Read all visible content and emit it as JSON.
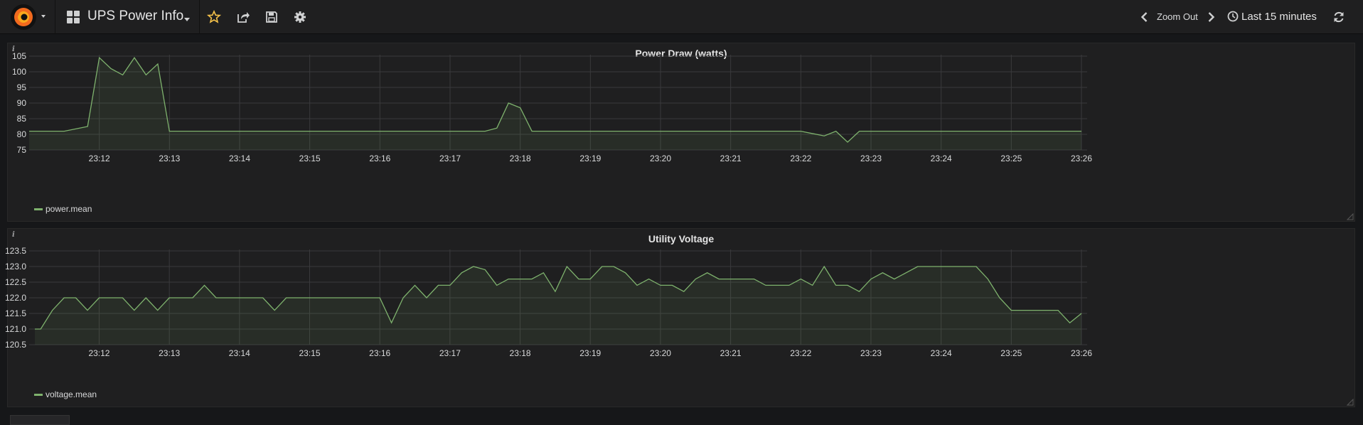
{
  "navbar": {
    "dashboard_title": "UPS Power Info",
    "zoom_label": "Zoom Out",
    "time_range": "Last 15 minutes",
    "icons": [
      "grafana-logo-icon",
      "dashboard-grid-icon",
      "star-icon",
      "share-icon",
      "save-icon",
      "settings-gear-icon",
      "chevron-left-icon",
      "chevron-right-icon",
      "clock-icon",
      "refresh-icon"
    ]
  },
  "colors": {
    "series": "#7eb26d",
    "star": "#f7c34a",
    "background": "#161719",
    "panel": "#1f1f20",
    "grid": "#3a3a3c"
  },
  "chart_data": [
    {
      "type": "area",
      "title": "Power Draw (watts)",
      "ylim": [
        75,
        105
      ],
      "yticks": [
        75,
        80,
        85,
        90,
        95,
        100,
        105
      ],
      "ytick_labels": [
        "75",
        "80",
        "85",
        "90",
        "95",
        "100",
        "105"
      ],
      "xlim": [
        "23:11:00",
        "23:26:00"
      ],
      "xticks": [
        "23:12",
        "23:13",
        "23:14",
        "23:15",
        "23:16",
        "23:17",
        "23:18",
        "23:19",
        "23:20",
        "23:21",
        "23:22",
        "23:23",
        "23:24",
        "23:25",
        "23:26"
      ],
      "grid": true,
      "legend_position": "bottom-left",
      "series": [
        {
          "name": "power.mean",
          "x": [
            "23:11:00",
            "23:11:30",
            "23:11:50",
            "23:12:00",
            "23:12:10",
            "23:12:20",
            "23:12:30",
            "23:12:40",
            "23:12:50",
            "23:13:00",
            "23:14:00",
            "23:15:00",
            "23:16:00",
            "23:17:00",
            "23:17:30",
            "23:17:40",
            "23:17:50",
            "23:18:00",
            "23:18:10",
            "23:19:00",
            "23:20:00",
            "23:21:00",
            "23:22:00",
            "23:22:20",
            "23:22:30",
            "23:22:40",
            "23:22:50",
            "23:23:00",
            "23:24:00",
            "23:25:00",
            "23:26:00"
          ],
          "y": [
            81,
            81,
            82.5,
            104.5,
            101,
            99,
            104.5,
            99,
            102.5,
            81,
            81,
            81,
            81,
            81,
            81,
            82,
            90,
            88.5,
            81,
            81,
            81,
            81,
            81,
            79.5,
            81,
            77.5,
            81,
            81,
            81,
            81,
            81
          ]
        }
      ]
    },
    {
      "type": "area",
      "title": "Utility Voltage",
      "ylim": [
        120.5,
        123.5
      ],
      "yticks": [
        120.5,
        121.0,
        121.5,
        122.0,
        122.5,
        123.0,
        123.5
      ],
      "ytick_labels": [
        "120.5",
        "121.0",
        "121.5",
        "122.0",
        "122.5",
        "123.0",
        "123.5"
      ],
      "xlim": [
        "23:11:05",
        "23:26:00"
      ],
      "xticks": [
        "23:12",
        "23:13",
        "23:14",
        "23:15",
        "23:16",
        "23:17",
        "23:18",
        "23:19",
        "23:20",
        "23:21",
        "23:22",
        "23:23",
        "23:24",
        "23:25",
        "23:26"
      ],
      "grid": true,
      "legend_position": "bottom-left",
      "series": [
        {
          "name": "voltage.mean",
          "x": [
            "23:11:05",
            "23:11:10",
            "23:11:20",
            "23:11:30",
            "23:11:40",
            "23:11:50",
            "23:12:00",
            "23:12:10",
            "23:12:20",
            "23:12:30",
            "23:12:40",
            "23:12:50",
            "23:13:00",
            "23:13:10",
            "23:13:20",
            "23:13:30",
            "23:13:40",
            "23:13:50",
            "23:14:00",
            "23:14:10",
            "23:14:20",
            "23:14:30",
            "23:14:40",
            "23:14:50",
            "23:15:00",
            "23:15:10",
            "23:15:20",
            "23:15:30",
            "23:15:40",
            "23:15:50",
            "23:16:00",
            "23:16:10",
            "23:16:20",
            "23:16:30",
            "23:16:40",
            "23:16:50",
            "23:17:00",
            "23:17:10",
            "23:17:20",
            "23:17:30",
            "23:17:40",
            "23:17:50",
            "23:18:00",
            "23:18:10",
            "23:18:20",
            "23:18:30",
            "23:18:40",
            "23:18:50",
            "23:19:00",
            "23:19:10",
            "23:19:20",
            "23:19:30",
            "23:19:40",
            "23:19:50",
            "23:20:00",
            "23:20:10",
            "23:20:20",
            "23:20:30",
            "23:20:40",
            "23:20:50",
            "23:21:00",
            "23:21:10",
            "23:21:20",
            "23:21:30",
            "23:21:40",
            "23:21:50",
            "23:22:00",
            "23:22:10",
            "23:22:20",
            "23:22:30",
            "23:22:40",
            "23:22:50",
            "23:23:00",
            "23:23:10",
            "23:23:20",
            "23:23:30",
            "23:23:40",
            "23:23:50",
            "23:24:00",
            "23:24:10",
            "23:24:20",
            "23:24:30",
            "23:24:40",
            "23:24:50",
            "23:25:00",
            "23:25:10",
            "23:25:20",
            "23:25:30",
            "23:25:40",
            "23:25:50",
            "23:26:00"
          ],
          "y": [
            121.0,
            121.0,
            121.6,
            122.0,
            122.0,
            121.6,
            122.0,
            122.0,
            122.0,
            121.6,
            122.0,
            121.6,
            122.0,
            122.0,
            122.0,
            122.4,
            122.0,
            122.0,
            122.0,
            122.0,
            122.0,
            121.6,
            122.0,
            122.0,
            122.0,
            122.0,
            122.0,
            122.0,
            122.0,
            122.0,
            122.0,
            121.2,
            122.0,
            122.4,
            122.0,
            122.4,
            122.4,
            122.8,
            123.0,
            122.9,
            122.4,
            122.6,
            122.6,
            122.6,
            122.8,
            122.2,
            123.0,
            122.6,
            122.6,
            123.0,
            123.0,
            122.8,
            122.4,
            122.6,
            122.4,
            122.4,
            122.2,
            122.6,
            122.8,
            122.6,
            122.6,
            122.6,
            122.6,
            122.4,
            122.4,
            122.4,
            122.6,
            122.4,
            123.0,
            122.4,
            122.4,
            122.2,
            122.6,
            122.8,
            122.6,
            122.8,
            123.0,
            123.0,
            123.0,
            123.0,
            123.0,
            123.0,
            122.6,
            122.0,
            121.6,
            121.6,
            121.6,
            121.6,
            121.6,
            121.2,
            121.5
          ]
        }
      ]
    }
  ]
}
